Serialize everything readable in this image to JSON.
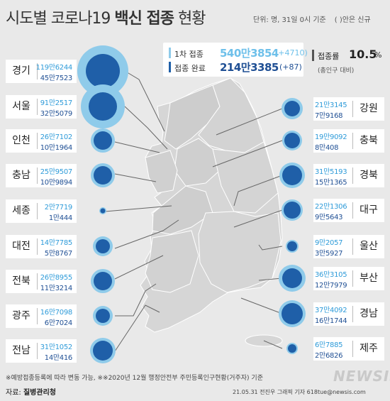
{
  "title": {
    "prefix": "시도별 코로나19 ",
    "bold": "백신 접종",
    "suffix": " 현황"
  },
  "unit_note": "단위: 명, 31일 0시 기준",
  "legend_note": "( )안은 신규",
  "first_dose": {
    "label": "1차 접종",
    "value": "540만3854",
    "new": "(+4710)"
  },
  "completed": {
    "label": "접종 완료",
    "value": "214만3385",
    "new": "(+87)"
  },
  "rate": {
    "label": "접종률",
    "value": "10.5",
    "unit": "%",
    "note": "(총인구 대비)"
  },
  "colors": {
    "first_dose": "#8fcbea",
    "completed": "#1f5fa8",
    "map": "#d6d6d6"
  },
  "regions_left": [
    {
      "name": "경기",
      "first": "119만6244",
      "done": "45만7523"
    },
    {
      "name": "서울",
      "first": "91만2517",
      "done": "32만5079"
    },
    {
      "name": "인천",
      "first": "26만7102",
      "done": "10만1964"
    },
    {
      "name": "충남",
      "first": "25만9507",
      "done": "10만9894"
    },
    {
      "name": "세종",
      "first": "2만7719",
      "done": "1만444"
    },
    {
      "name": "대전",
      "first": "14만7785",
      "done": "5만8767"
    },
    {
      "name": "전북",
      "first": "26만8955",
      "done": "11만3214"
    },
    {
      "name": "광주",
      "first": "16만7098",
      "done": "6만7024"
    },
    {
      "name": "전남",
      "first": "31만1052",
      "done": "14만416"
    }
  ],
  "regions_right": [
    {
      "name": "강원",
      "first": "21만3145",
      "done": "7만9168"
    },
    {
      "name": "충북",
      "first": "19만9092",
      "done": "8만408"
    },
    {
      "name": "경북",
      "first": "31만5193",
      "done": "15만1365"
    },
    {
      "name": "대구",
      "first": "22만1306",
      "done": "9만5643"
    },
    {
      "name": "울산",
      "first": "9만2057",
      "done": "3만5927"
    },
    {
      "name": "부산",
      "first": "36만3105",
      "done": "12만7979"
    },
    {
      "name": "경남",
      "first": "37만4092",
      "done": "16만1744"
    },
    {
      "name": "제주",
      "first": "6만7885",
      "done": "2만6826"
    }
  ],
  "footnote": "※예방접종등록에 따라 변동 가능, ※※2020년 12월 행정안전부 주민등록인구현황(거주자) 기준",
  "source": {
    "label": "자료:",
    "value": "질병관리청"
  },
  "credit": "21.05.31 전진우 그래픽 기자 618tue@newsis.com",
  "brand": "NEWSIS"
}
